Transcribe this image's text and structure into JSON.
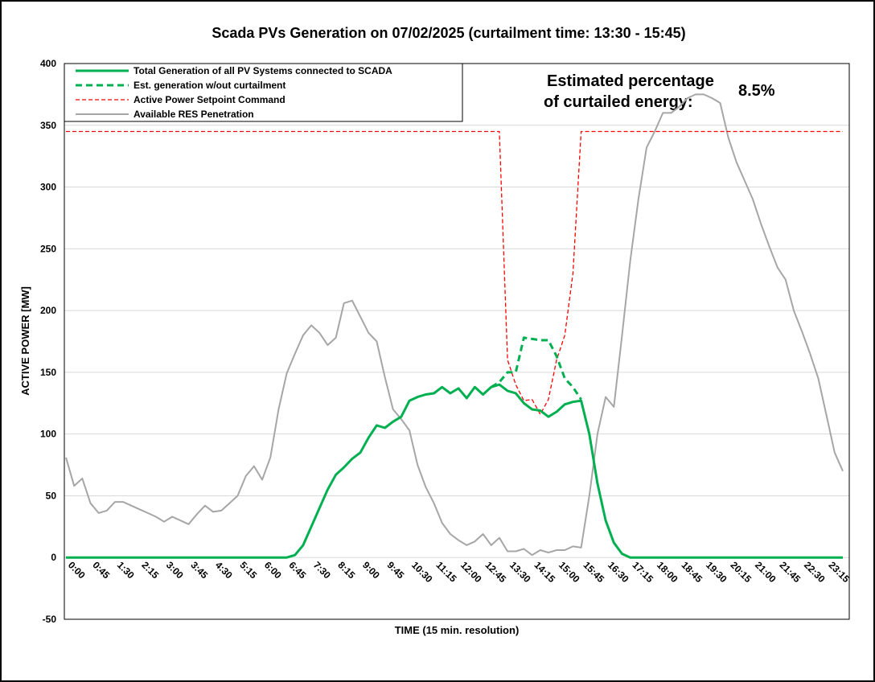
{
  "chart_data": {
    "type": "line",
    "title": "Scada PVs Generation on 07/02/2025 (curtailment time: 13:30 - 15:45)",
    "x_label": "TIME (15 min. resolution)",
    "y_label": "ACTIVE POWER [MW]",
    "annotations": [
      "Estimated percentage",
      "of curtailed energy:",
      "8.5%"
    ],
    "grid": true,
    "ylim": [
      -50,
      400
    ],
    "yticks": [
      -50,
      0,
      50,
      100,
      150,
      200,
      250,
      300,
      350,
      400
    ],
    "categories": [
      "0:00",
      null,
      null,
      "0:45",
      null,
      null,
      "1:30",
      null,
      null,
      "2:15",
      null,
      null,
      "3:00",
      null,
      null,
      "3:45",
      null,
      null,
      "4:30",
      null,
      null,
      "5:15",
      null,
      null,
      "6:00",
      null,
      null,
      "6:45",
      null,
      null,
      "7:30",
      null,
      null,
      "8:15",
      null,
      null,
      "9:00",
      null,
      null,
      "9:45",
      null,
      null,
      "10:30",
      null,
      null,
      "11:15",
      null,
      null,
      "12:00",
      null,
      null,
      "12:45",
      null,
      null,
      "13:30",
      null,
      null,
      "14:15",
      null,
      null,
      "15:00",
      null,
      null,
      "15:45",
      null,
      null,
      "16:30",
      null,
      null,
      "17:15",
      null,
      null,
      "18:00",
      null,
      null,
      "18:45",
      null,
      null,
      "19:30",
      null,
      null,
      "20:15",
      null,
      null,
      "21:00",
      null,
      null,
      "21:45",
      null,
      null,
      "22:30",
      null,
      null,
      "23:15",
      null,
      null
    ],
    "series": [
      {
        "name": "Total Generation of all PV Systems connected to SCADA",
        "color": "#00b050",
        "width": 3,
        "dash": "none",
        "values": [
          0,
          0,
          0,
          0,
          0,
          0,
          0,
          0,
          0,
          0,
          0,
          0,
          0,
          0,
          0,
          0,
          0,
          0,
          0,
          0,
          0,
          0,
          0,
          0,
          0,
          0,
          0,
          0,
          2,
          10,
          25,
          40,
          55,
          67,
          73,
          80,
          85,
          97,
          107,
          105,
          110,
          114,
          127,
          130,
          132,
          133,
          138,
          133,
          137,
          129,
          138,
          132,
          138,
          140,
          135,
          133,
          125,
          120,
          119,
          114,
          118,
          124,
          126,
          127,
          100,
          60,
          30,
          12,
          3,
          0,
          0,
          0,
          0,
          0,
          0,
          0,
          0,
          0,
          0,
          0,
          0,
          0,
          0,
          0,
          0,
          0,
          0,
          0,
          0,
          0,
          0,
          0,
          0,
          0,
          0,
          0
        ]
      },
      {
        "name": "Est. generation w/out curtailment",
        "color": "#00b050",
        "width": 3,
        "dash": "8 5",
        "values": [
          null,
          null,
          null,
          null,
          null,
          null,
          null,
          null,
          null,
          null,
          null,
          null,
          null,
          null,
          null,
          null,
          null,
          null,
          null,
          null,
          null,
          null,
          null,
          null,
          null,
          null,
          null,
          null,
          null,
          null,
          null,
          null,
          null,
          null,
          null,
          null,
          null,
          null,
          null,
          null,
          null,
          null,
          null,
          null,
          null,
          null,
          null,
          null,
          null,
          null,
          null,
          null,
          138,
          142,
          150,
          150,
          178,
          177,
          176,
          176,
          163,
          145,
          138,
          128,
          null,
          null,
          null,
          null,
          null,
          null,
          null,
          null,
          null,
          null,
          null,
          null,
          null,
          null,
          null,
          null,
          null,
          null,
          null,
          null,
          null,
          null,
          null,
          null,
          null,
          null,
          null,
          null,
          null,
          null,
          null,
          null
        ]
      },
      {
        "name": "Active Power Setpoint Command",
        "color": "#ff0000",
        "width": 1.3,
        "dash": "5 3",
        "values": [
          345,
          345,
          345,
          345,
          345,
          345,
          345,
          345,
          345,
          345,
          345,
          345,
          345,
          345,
          345,
          345,
          345,
          345,
          345,
          345,
          345,
          345,
          345,
          345,
          345,
          345,
          345,
          345,
          345,
          345,
          345,
          345,
          345,
          345,
          345,
          345,
          345,
          345,
          345,
          345,
          345,
          345,
          345,
          345,
          345,
          345,
          345,
          345,
          345,
          345,
          345,
          345,
          345,
          345,
          160,
          140,
          127,
          128,
          116,
          128,
          160,
          180,
          230,
          345,
          345,
          345,
          345,
          345,
          345,
          345,
          345,
          345,
          345,
          345,
          345,
          345,
          345,
          345,
          345,
          345,
          345,
          345,
          345,
          345,
          345,
          345,
          345,
          345,
          345,
          345,
          345,
          345,
          345,
          345,
          345,
          345
        ]
      },
      {
        "name": "Available RES Penetration",
        "color": "#a6a6a6",
        "width": 2,
        "dash": "none",
        "values": [
          81,
          58,
          64,
          44,
          36,
          38,
          45,
          45,
          42,
          39,
          36,
          33,
          29,
          33,
          30,
          27,
          35,
          42,
          37,
          38,
          44,
          50,
          66,
          74,
          63,
          81,
          120,
          149,
          165,
          180,
          188,
          182,
          172,
          178,
          206,
          208,
          195,
          182,
          175,
          146,
          120,
          112,
          103,
          75,
          57,
          44,
          28,
          19,
          14,
          10,
          13,
          19,
          10,
          16,
          5,
          5,
          7,
          2,
          6,
          4,
          6,
          6,
          9,
          8,
          50,
          100,
          130,
          122,
          180,
          240,
          290,
          332,
          345,
          360,
          360,
          365,
          372,
          375,
          375,
          372,
          368,
          340,
          320,
          305,
          290,
          270,
          252,
          235,
          225,
          200,
          183,
          165,
          145,
          115,
          85,
          70
        ]
      }
    ]
  }
}
